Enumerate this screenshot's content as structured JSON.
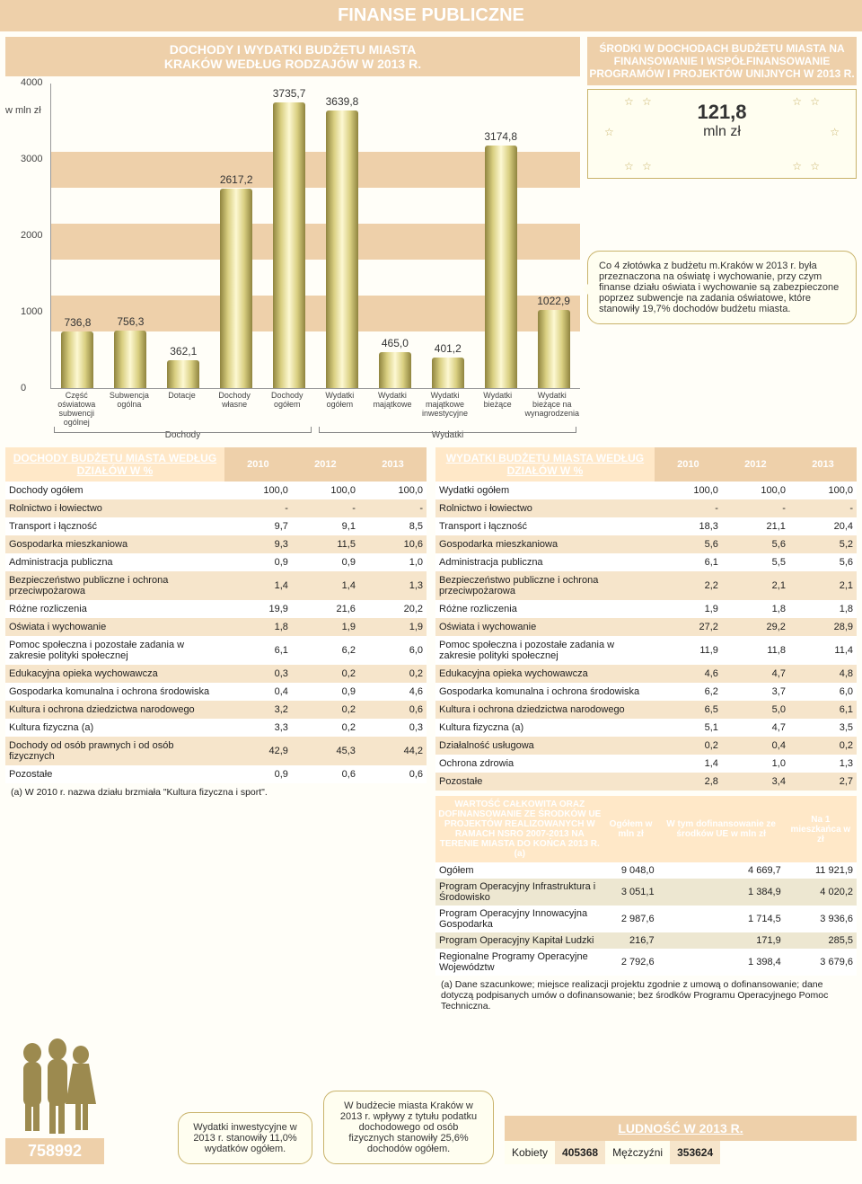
{
  "page_title": "FINANSE PUBLICZNE",
  "chart": {
    "title_line1": "DOCHODY I WYDATKI BUDŻETU MIASTA",
    "title_line2": "KRAKÓW WEDŁUG RODZAJÓW W 2013 R.",
    "y_unit": "w mln zł",
    "yticks": [
      "4000",
      "3000",
      "2000",
      "1000",
      "0"
    ],
    "bars": [
      {
        "label": "Część oświatowa subwencji ogólnej",
        "value": 736.8,
        "txt": "736,8"
      },
      {
        "label": "Subwencja ogólna",
        "value": 756.3,
        "txt": "756,3"
      },
      {
        "label": "Dotacje",
        "value": 362.1,
        "txt": "362,1"
      },
      {
        "label": "Dochody własne",
        "value": 2617.2,
        "txt": "2617,2"
      },
      {
        "label": "Dochody ogółem",
        "value": 3735.7,
        "txt": "3735,7"
      },
      {
        "label": "Wydatki ogółem",
        "value": 3639.8,
        "txt": "3639,8"
      },
      {
        "label": "Wydatki majątkowe",
        "value": 465.0,
        "txt": "465,0"
      },
      {
        "label": "Wydatki majątkowe inwestycyjne",
        "value": 401.2,
        "txt": "401,2"
      },
      {
        "label": "Wydatki bieżące",
        "value": 3174.8,
        "txt": "3174,8"
      },
      {
        "label": "Wydatki bieżące na wynagrodzenia",
        "value": 1022.9,
        "txt": "1022,9"
      }
    ],
    "group1": "Dochody",
    "group2": "Wydatki",
    "ymax": 4000
  },
  "eu_box": {
    "title": "ŚRODKI W DOCHODACH BUDŻETU MIASTA NA FINANSOWANIE I WSPÓŁFINANSOWANIE PROGRAMÓW I PROJEKTÓW UNIJNYCH W 2013 R.",
    "value": "121,8",
    "unit": "mln zł"
  },
  "side_bubble": "Co 4 złotówka z budżetu m.Kraków w 2013 r. była przeznaczona na oświatę i wychowanie, przy czym finanse działu oświata i wychowanie są zabezpieczone poprzez subwencje na zadania oświatowe, które stanowiły 19,7% dochodów budżetu miasta.",
  "left_table": {
    "corner": "DOCHODY BUDŻETU MIASTA WEDŁUG DZIAŁÓW W %",
    "cols": [
      "2010",
      "2012",
      "2013"
    ],
    "rows": [
      [
        "Dochody ogółem",
        "100,0",
        "100,0",
        "100,0"
      ],
      [
        "Rolnictwo i łowiectwo",
        "-",
        "-",
        "-"
      ],
      [
        "Transport i łączność",
        "9,7",
        "9,1",
        "8,5"
      ],
      [
        "Gospodarka mieszkaniowa",
        "9,3",
        "11,5",
        "10,6"
      ],
      [
        "Administracja publiczna",
        "0,9",
        "0,9",
        "1,0"
      ],
      [
        "Bezpieczeństwo publiczne i ochrona przeciwpożarowa",
        "1,4",
        "1,4",
        "1,3"
      ],
      [
        "Różne rozliczenia",
        "19,9",
        "21,6",
        "20,2"
      ],
      [
        "Oświata i wychowanie",
        "1,8",
        "1,9",
        "1,9"
      ],
      [
        "Pomoc społeczna i pozostałe zadania w zakresie polityki społecznej",
        "6,1",
        "6,2",
        "6,0"
      ],
      [
        "Edukacyjna opieka wychowawcza",
        "0,3",
        "0,2",
        "0,2"
      ],
      [
        "Gospodarka komunalna i ochrona środowiska",
        "0,4",
        "0,9",
        "4,6"
      ],
      [
        "Kultura i ochrona dziedzictwa narodowego",
        "3,2",
        "0,2",
        "0,6"
      ],
      [
        "Kultura fizyczna (a)",
        "3,3",
        "0,2",
        "0,3"
      ],
      [
        "Dochody od osób prawnych i od osób fizycznych",
        "42,9",
        "45,3",
        "44,2"
      ],
      [
        "Pozostałe",
        "0,9",
        "0,6",
        "0,6"
      ]
    ],
    "footnote": "(a) W 2010 r. nazwa działu brzmiała \"Kultura fizyczna i sport\"."
  },
  "right_table": {
    "corner": "WYDATKI BUDŻETU MIASTA WEDŁUG DZIAŁÓW W %",
    "cols": [
      "2010",
      "2012",
      "2013"
    ],
    "rows": [
      [
        "Wydatki ogółem",
        "100,0",
        "100,0",
        "100,0"
      ],
      [
        "Rolnictwo i łowiectwo",
        "-",
        "-",
        "-"
      ],
      [
        "Transport i łączność",
        "18,3",
        "21,1",
        "20,4"
      ],
      [
        "Gospodarka mieszkaniowa",
        "5,6",
        "5,6",
        "5,2"
      ],
      [
        "Administracja publiczna",
        "6,1",
        "5,5",
        "5,6"
      ],
      [
        "Bezpieczeństwo publiczne i ochrona przeciwpożarowa",
        "2,2",
        "2,1",
        "2,1"
      ],
      [
        "Różne rozliczenia",
        "1,9",
        "1,8",
        "1,8"
      ],
      [
        "Oświata i wychowanie",
        "27,2",
        "29,2",
        "28,9"
      ],
      [
        "Pomoc społeczna i pozostałe zadania w zakresie polityki społecznej",
        "11,9",
        "11,8",
        "11,4"
      ],
      [
        "Edukacyjna opieka wychowawcza",
        "4,6",
        "4,7",
        "4,8"
      ],
      [
        "Gospodarka komunalna i ochrona środowiska",
        "6,2",
        "3,7",
        "6,0"
      ],
      [
        "Kultura i ochrona dziedzictwa narodowego",
        "6,5",
        "5,0",
        "6,1"
      ],
      [
        "Kultura fizyczna (a)",
        "5,1",
        "4,7",
        "3,5"
      ],
      [
        "Działalność usługowa",
        "0,2",
        "0,4",
        "0,2"
      ],
      [
        "Ochrona zdrowia",
        "1,4",
        "1,0",
        "1,3"
      ],
      [
        "Pozostałe",
        "2,8",
        "3,4",
        "2,7"
      ]
    ]
  },
  "proj_table": {
    "corner": "WARTOŚĆ CAŁKOWITA ORAZ DOFINANSOWANIE ZE ŚRODKÓW UE PROJEKTÓW REALIZOWANYCH W RAMACH NSRO 2007-2013 NA TERENIE MIASTA DO KOŃCA 2013 R. (a)",
    "cols": [
      "Ogółem w mln zł",
      "W tym dofinansowanie ze środków UE w mln zł",
      "Na 1 mieszkańca w zł"
    ],
    "rows": [
      [
        "Ogółem",
        "9 048,0",
        "4 669,7",
        "11 921,9"
      ],
      [
        "Program Operacyjny Infrastruktura i Środowisko",
        "3 051,1",
        "1 384,9",
        "4 020,2"
      ],
      [
        "Program Operacyjny Innowacyjna Gospodarka",
        "2 987,6",
        "1 714,5",
        "3 936,6"
      ],
      [
        "Program Operacyjny Kapitał Ludzki",
        "216,7",
        "171,9",
        "285,5"
      ],
      [
        "Regionalne Programy Operacyjne Województw",
        "2 792,6",
        "1 398,4",
        "3 679,6"
      ]
    ],
    "footnote": "(a) Dane szacunkowe; miejsce realizacji projektu zgodnie z umową o dofinansowanie; dane dotyczą podpisanych umów o dofinansowanie; bez środków Programu Operacyjnego Pomoc Techniczna."
  },
  "bubble_left": "Wydatki inwestycyjne w 2013 r. stanowiły 11,0% wydatków ogółem.",
  "bubble_mid": "W budżecie miasta Kraków w 2013 r. wpływy z tytułu podatku dochodowego od osób fizycznych stanowiły 25,6% dochodów ogółem.",
  "population": {
    "title": "LUDNOŚĆ W 2013 R.",
    "total": "758992",
    "k_label": "Kobiety",
    "k_val": "405368",
    "m_label": "Mężczyźni",
    "m_val": "353624"
  }
}
